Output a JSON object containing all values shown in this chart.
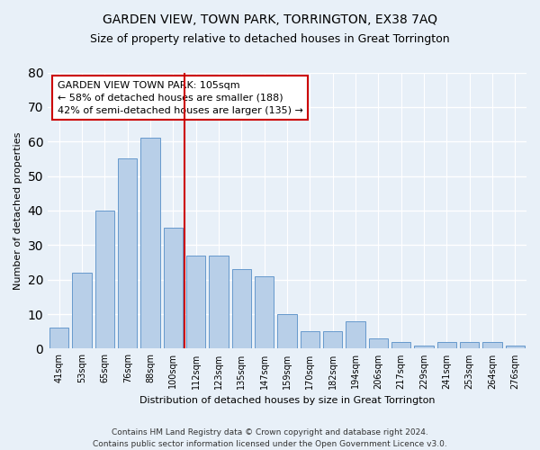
{
  "title": "GARDEN VIEW, TOWN PARK, TORRINGTON, EX38 7AQ",
  "subtitle": "Size of property relative to detached houses in Great Torrington",
  "xlabel": "Distribution of detached houses by size in Great Torrington",
  "ylabel": "Number of detached properties",
  "categories": [
    "41sqm",
    "53sqm",
    "65sqm",
    "76sqm",
    "88sqm",
    "100sqm",
    "112sqm",
    "123sqm",
    "135sqm",
    "147sqm",
    "159sqm",
    "170sqm",
    "182sqm",
    "194sqm",
    "206sqm",
    "217sqm",
    "229sqm",
    "241sqm",
    "253sqm",
    "264sqm",
    "276sqm"
  ],
  "values": [
    6,
    22,
    40,
    55,
    61,
    35,
    27,
    27,
    23,
    21,
    10,
    5,
    5,
    8,
    3,
    2,
    1,
    2,
    2,
    2,
    1
  ],
  "bar_color": "#b8cfe8",
  "bar_edge_color": "#6699cc",
  "annotation_line1": "GARDEN VIEW TOWN PARK: 105sqm",
  "annotation_line2": "← 58% of detached houses are smaller (188)",
  "annotation_line3": "42% of semi-detached houses are larger (135) →",
  "ylim": [
    0,
    80
  ],
  "yticks": [
    0,
    10,
    20,
    30,
    40,
    50,
    60,
    70,
    80
  ],
  "vline_color": "#cc0000",
  "footer1": "Contains HM Land Registry data © Crown copyright and database right 2024.",
  "footer2": "Contains public sector information licensed under the Open Government Licence v3.0.",
  "background_color": "#e8f0f8",
  "plot_bg_color": "#e8f0f8",
  "grid_color": "#ffffff",
  "annotation_box_color": "#ffffff",
  "annotation_border_color": "#cc0000",
  "title_fontsize": 10,
  "subtitle_fontsize": 9,
  "xlabel_fontsize": 8,
  "ylabel_fontsize": 8,
  "tick_fontsize": 7,
  "annotation_fontsize": 8,
  "footer_fontsize": 6.5
}
